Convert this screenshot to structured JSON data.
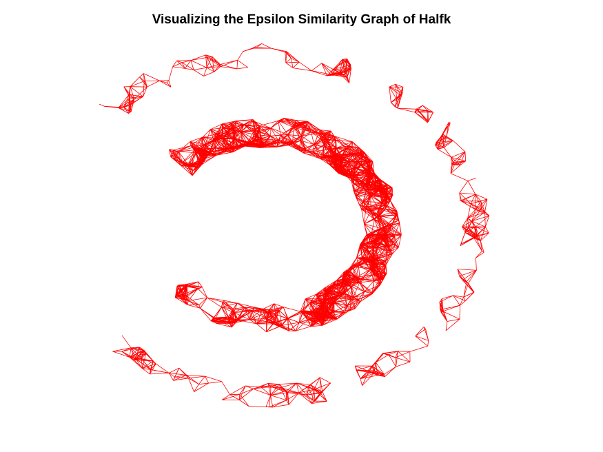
{
  "figure": {
    "title": "Visualizing the Epsilon Similarity Graph of Halfk"
  },
  "chart_data": {
    "type": "network-graph",
    "title": "Visualizing the Epsilon Similarity Graph of Halfk",
    "xlabel": "",
    "ylabel": "",
    "axes_visible": false,
    "grid": false,
    "legend": "none",
    "edge_color": "#ff0000",
    "xlim": [
      -1.1,
      1.1
    ],
    "ylim": [
      -1.1,
      1.1
    ],
    "clusters": [
      {
        "shape": "inner half-ring",
        "center": [
          -0.2,
          0
        ],
        "radius": 0.53,
        "band_width": 0.09,
        "angle_start_deg": -140,
        "angle_end_deg": 140,
        "node_count": 420,
        "density": "high"
      },
      {
        "shape": "outer half-ring",
        "center": [
          -0.2,
          0
        ],
        "radius": 0.96,
        "band_width": 0.07,
        "angle_start_deg": -140,
        "angle_end_deg": 140,
        "node_count": 240,
        "density": "sparse"
      }
    ],
    "epsilon": 0.09
  }
}
